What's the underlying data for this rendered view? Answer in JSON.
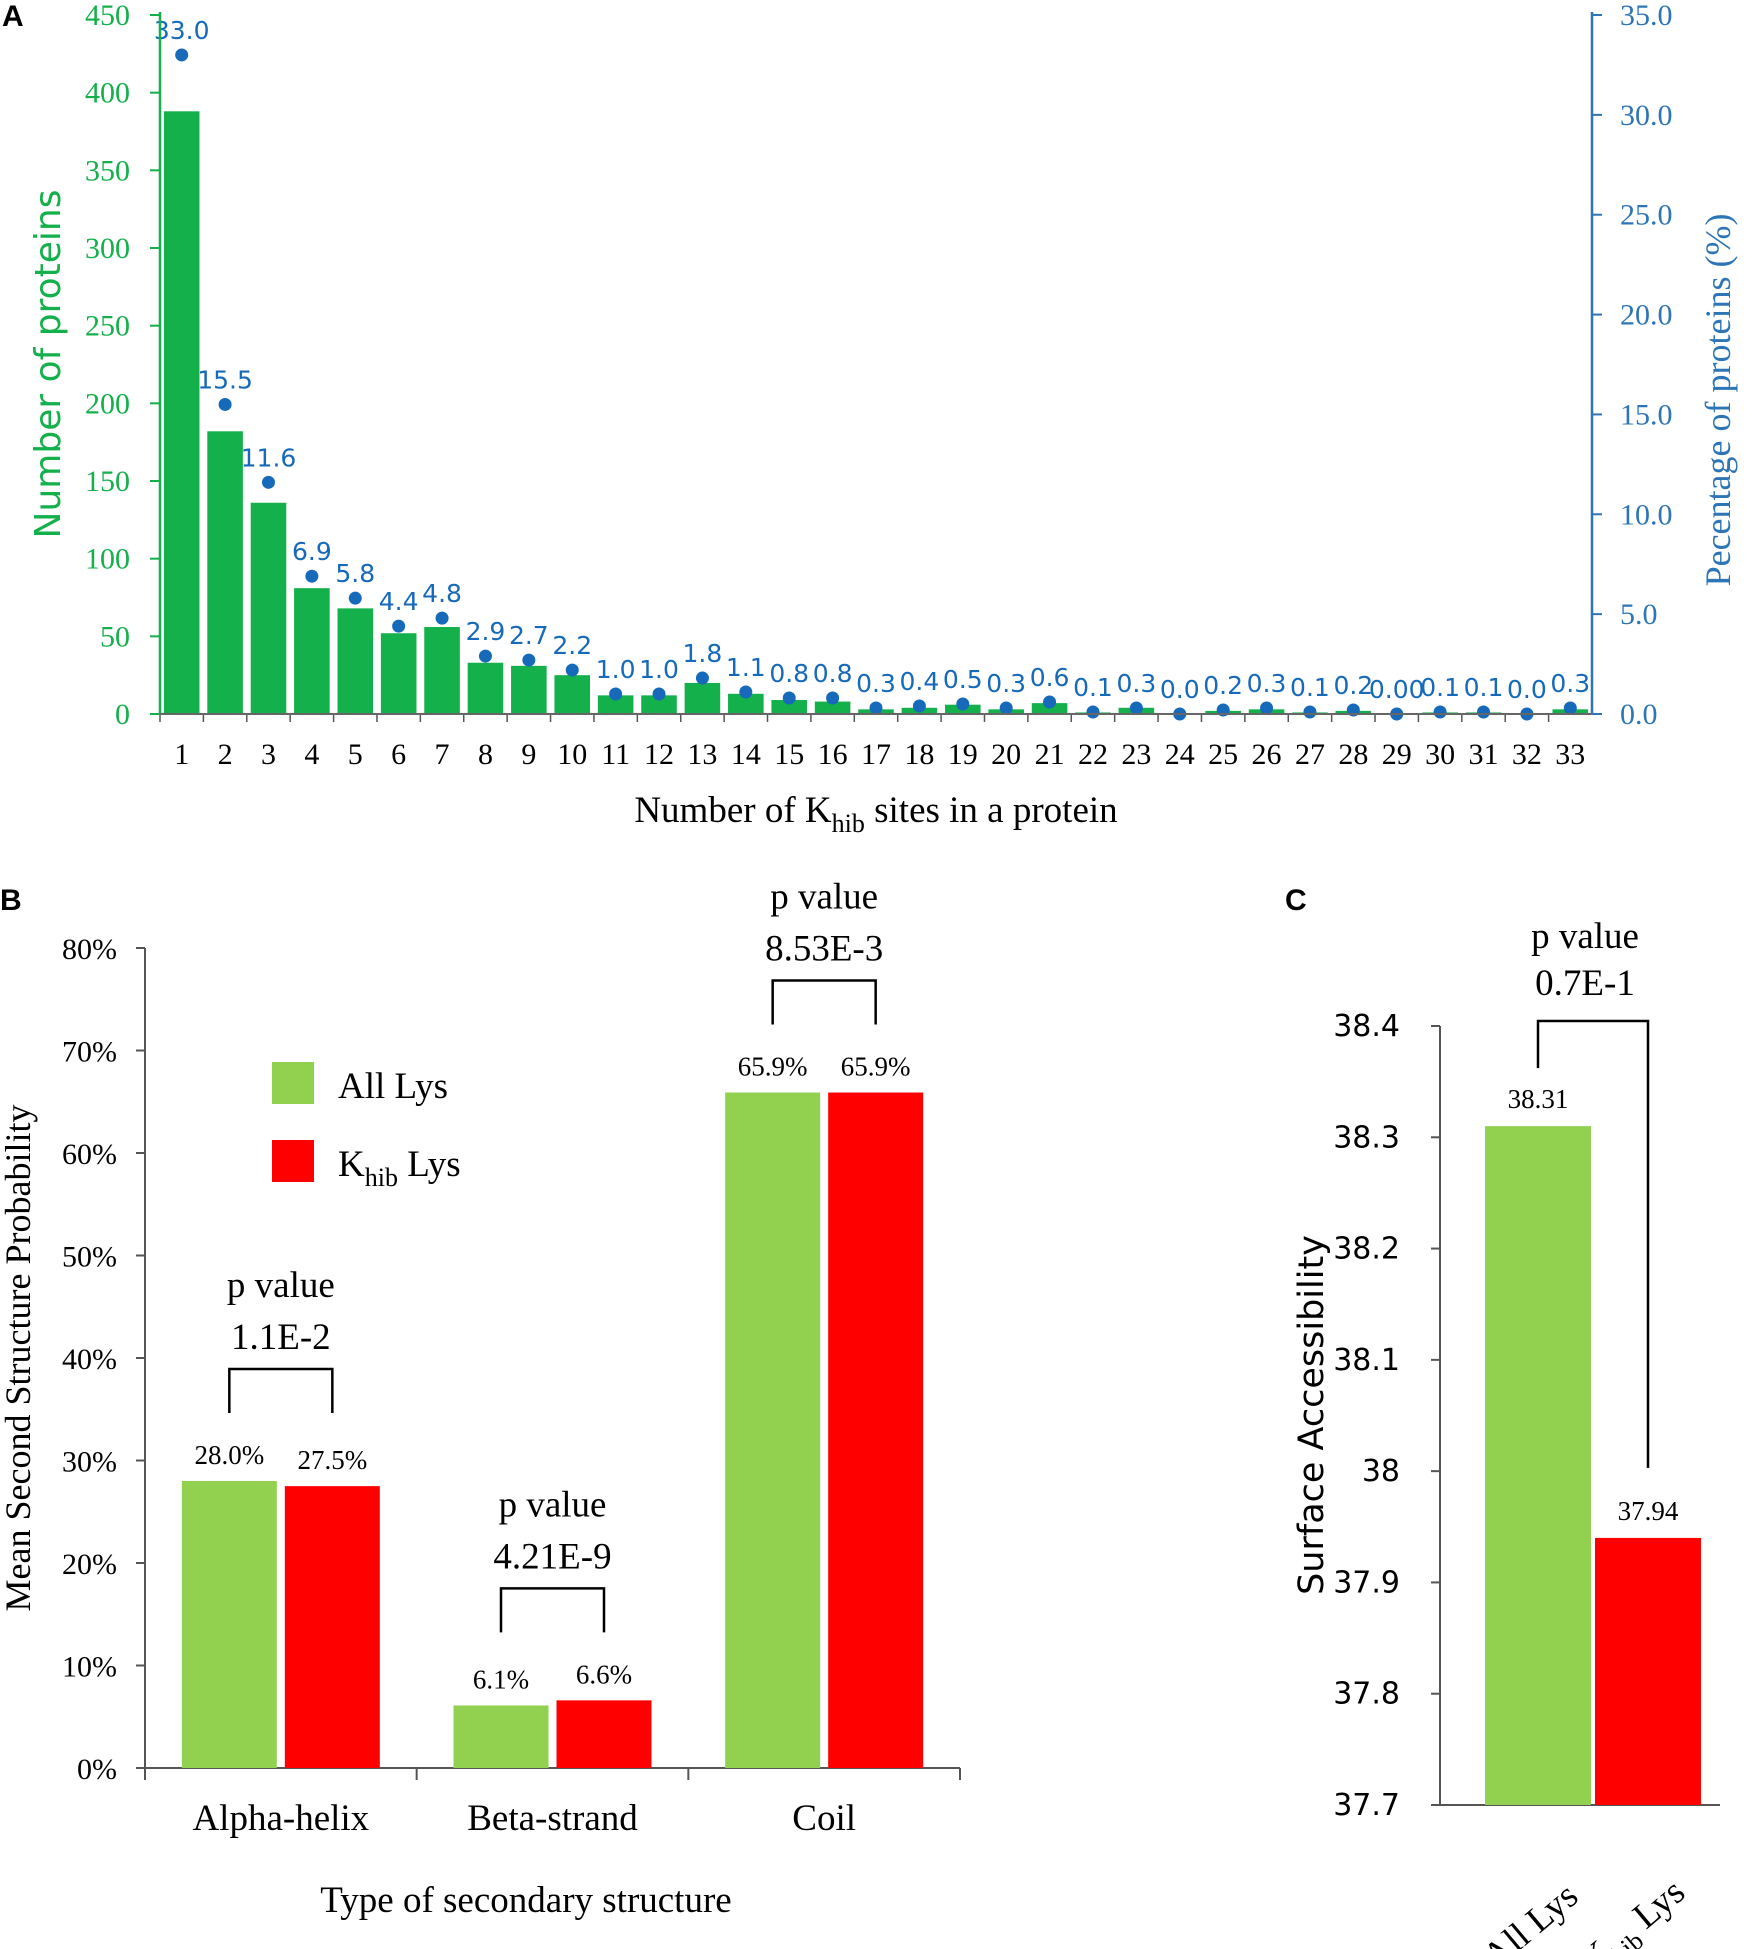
{
  "colors": {
    "green_bar": "#13b04b",
    "green_axis": "#13b04b",
    "blue_dot": "#1769b9",
    "blue_axis": "#2e75b6",
    "light_green": "#92d050",
    "red": "#ff0000",
    "black": "#000000"
  },
  "chart_data": [
    {
      "panel": "A",
      "type": "bar",
      "xlabel": "Number of K_hib sites in a protein",
      "xlabel_main": "Number of K",
      "xlabel_sub": "hib",
      "xlabel_tail": " sites in a protein",
      "ylabel": "Number of proteins",
      "y2label": "Pecentage of  proteins (%)",
      "ylim": [
        0,
        450
      ],
      "y2lim": [
        0,
        35
      ],
      "yticks": [
        "0",
        "50",
        "100",
        "150",
        "200",
        "250",
        "300",
        "350",
        "400",
        "450"
      ],
      "y2ticks": [
        "0.0",
        "5.0",
        "10.0",
        "15.0",
        "20.0",
        "25.0",
        "30.0",
        "35.0"
      ],
      "categories": [
        "1",
        "2",
        "3",
        "4",
        "5",
        "6",
        "7",
        "8",
        "9",
        "10",
        "11",
        "12",
        "13",
        "14",
        "15",
        "16",
        "17",
        "18",
        "19",
        "20",
        "21",
        "22",
        "23",
        "24",
        "25",
        "26",
        "27",
        "28",
        "29",
        "30",
        "31",
        "32",
        "33"
      ],
      "series": [
        {
          "name": "Number of proteins",
          "axis": "left",
          "type": "bar",
          "values": [
            388,
            182,
            136,
            81,
            68,
            52,
            56,
            33,
            31,
            25,
            12,
            12,
            20,
            13,
            9,
            8,
            3,
            4,
            6,
            3,
            7,
            1,
            4,
            0,
            2,
            3,
            1,
            2,
            0,
            1,
            1,
            0,
            3
          ]
        },
        {
          "name": "Percentage of proteins (%)",
          "axis": "right",
          "type": "scatter",
          "values": [
            33.0,
            15.5,
            11.6,
            6.9,
            5.8,
            4.4,
            4.8,
            2.9,
            2.7,
            2.2,
            1.0,
            1.0,
            1.8,
            1.1,
            0.8,
            0.8,
            0.3,
            0.4,
            0.5,
            0.3,
            0.6,
            0.1,
            0.3,
            0.0,
            0.2,
            0.3,
            0.1,
            0.2,
            0.0,
            0.1,
            0.1,
            0.0,
            0.3
          ],
          "labels": [
            "33.0",
            "15.5",
            "11.6",
            "6.9",
            "5.8",
            "4.4",
            "4.8",
            "2.9",
            "2.7",
            "2.2",
            "1.0",
            "1.0",
            "1.8",
            "1.1",
            "0.8",
            "0.8",
            "0.3",
            "0.4",
            "0.5",
            "0.3",
            "0.6",
            "0.1",
            "0.3",
            "0.0",
            "0.2",
            "0.3",
            "0.1",
            "0.2",
            "0.00",
            "0.1",
            "0.1",
            "0.0",
            "0.3"
          ]
        }
      ]
    },
    {
      "panel": "B",
      "type": "bar",
      "xlabel": "Type of secondary structure",
      "ylabel": "Mean Second Structure Probability",
      "ylim": [
        0,
        80
      ],
      "yticks": [
        "0%",
        "10%",
        "20%",
        "30%",
        "40%",
        "50%",
        "60%",
        "70%",
        "80%"
      ],
      "categories": [
        "Alpha-helix",
        "Beta-strand",
        "Coil"
      ],
      "legend": {
        "position": "upper-left",
        "entries": [
          "All Lys",
          "K_hib Lys"
        ],
        "entry1": "All Lys",
        "entry2_main": "K",
        "entry2_sub": "hib",
        "entry2_tail": " Lys"
      },
      "series": [
        {
          "name": "All Lys",
          "values": [
            28.0,
            6.1,
            65.9
          ],
          "labels": [
            "28.0%",
            "6.1%",
            "65.9%"
          ]
        },
        {
          "name": "K_hib Lys",
          "values": [
            27.5,
            6.6,
            65.9
          ],
          "labels": [
            "27.5%",
            "6.6%",
            "65.9%"
          ]
        }
      ],
      "annotations": [
        {
          "line1": "p value",
          "line2": "1.1E-2"
        },
        {
          "line1": "p value",
          "line2": "4.21E-9"
        },
        {
          "line1": "p value",
          "line2": "8.53E-3"
        }
      ]
    },
    {
      "panel": "C",
      "type": "bar",
      "xlabel": "",
      "ylabel": "Surface Accessibility",
      "ylim": [
        37.7,
        38.4
      ],
      "yticks": [
        "37.7",
        "37.8",
        "37.9",
        "38",
        "38.1",
        "38.2",
        "38.3",
        "38.4"
      ],
      "categories": [
        "All Lys",
        "K_hib Lys"
      ],
      "cat2_main": "K",
      "cat2_sub": "hib",
      "cat2_tail": " Lys",
      "values": [
        38.31,
        37.94
      ],
      "labels": [
        "38.31",
        "37.94"
      ],
      "annotation": {
        "line1": "p value",
        "line2": "0.7E-1"
      }
    }
  ]
}
